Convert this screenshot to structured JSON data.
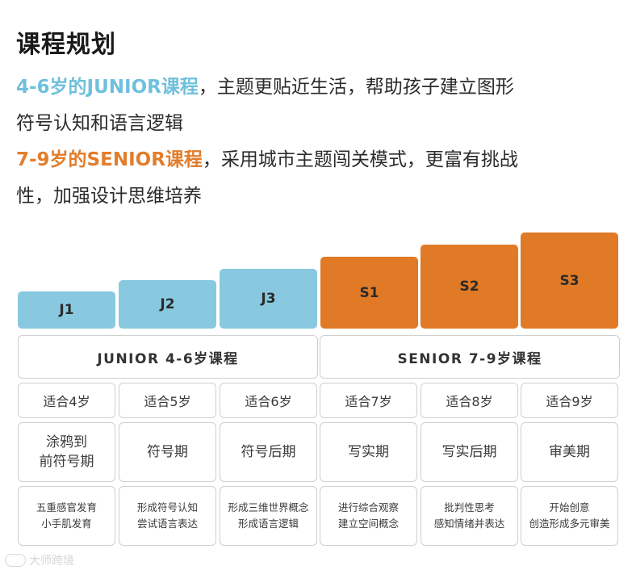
{
  "title": "课程规划",
  "intro": [
    {
      "highlight": "4-6岁的JUNIOR课程",
      "line1_rest": "，主题更贴近生活，帮助孩子建立图形",
      "line2": "符号认知和语言逻辑"
    },
    {
      "highlight": "7-9岁的SENIOR课程",
      "line1_rest": "，采用城市主题闯关模式，更富有挑战",
      "line2": "性，加强设计思维培养"
    }
  ],
  "levels": [
    "J1",
    "J2",
    "J3",
    "S1",
    "S2",
    "S3"
  ],
  "groups": [
    "JUNIOR 4-6岁课程",
    "SENIOR 7-9岁课程"
  ],
  "ages": [
    "适合4岁",
    "适合5岁",
    "适合6岁",
    "适合7岁",
    "适合8岁",
    "适合9岁"
  ],
  "stages": [
    [
      "涂鸦到",
      "前符号期"
    ],
    [
      "符号期"
    ],
    [
      "符号后期"
    ],
    [
      "写实期"
    ],
    [
      "写实后期"
    ],
    [
      "审美期"
    ]
  ],
  "descriptions": [
    [
      "五重感官发育",
      "小手肌发育"
    ],
    [
      "形成符号认知",
      "尝试语言表达"
    ],
    [
      "形成三维世界概念",
      "形成语言逻辑"
    ],
    [
      "进行综合观察",
      "建立空间概念"
    ],
    [
      "批判性思考",
      "感知情绪并表达"
    ],
    [
      "开始创意",
      "创造形成多元审美"
    ]
  ],
  "watermark": "大师跨境",
  "colors": {
    "junior": "#88c9df",
    "senior": "#e07a26",
    "junior_text": "#6fc0dc",
    "senior_text": "#e27d2b"
  }
}
